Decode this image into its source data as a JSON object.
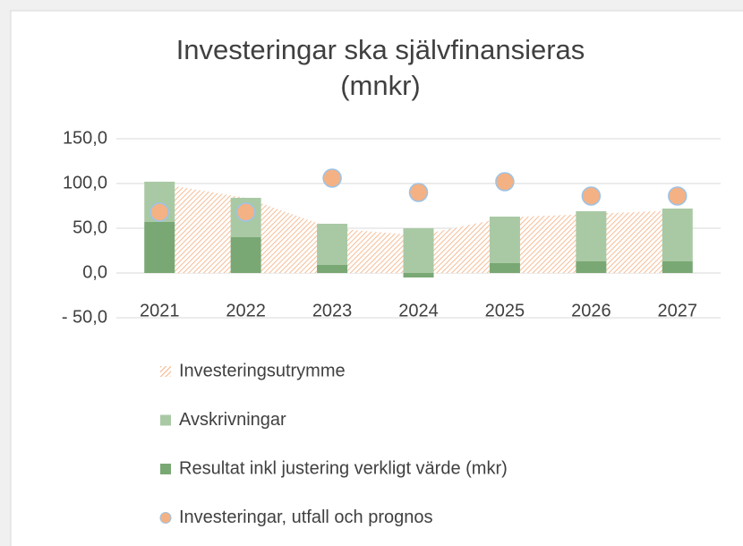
{
  "chart_data": {
    "type": "combo",
    "title": "Investeringar ska självfinansieras",
    "subtitle": "(mnkr)",
    "categories": [
      "2021",
      "2022",
      "2023",
      "2024",
      "2025",
      "2026",
      "2027"
    ],
    "series": [
      {
        "name": "Investeringsutrymme",
        "type": "area",
        "color": "#f4b183",
        "values": [
          100,
          84,
          50,
          42,
          62,
          66,
          70
        ]
      },
      {
        "name": "Avskrivningar",
        "type": "bar",
        "color": "#a9c9a4",
        "values": [
          45,
          44,
          46,
          50,
          52,
          56,
          59
        ]
      },
      {
        "name": "Resultat inkl justering verkligt värde (mkr)",
        "type": "bar",
        "color": "#7aa874",
        "values": [
          57,
          40,
          9,
          -5,
          11,
          13,
          13
        ]
      },
      {
        "name": "Investeringar, utfall och prognos",
        "type": "scatter",
        "color": "#f4b183",
        "values": [
          68,
          68,
          106,
          90,
          102,
          86,
          86
        ]
      }
    ],
    "ylim": [
      -50,
      150
    ],
    "yticks": [
      {
        "value": -50,
        "label": "- 50,0"
      },
      {
        "value": 0,
        "label": "0,0"
      },
      {
        "value": 50,
        "label": "50,0"
      },
      {
        "value": 100,
        "label": "100,0"
      },
      {
        "value": 150,
        "label": "150,0"
      }
    ],
    "grid": true,
    "legend": "bottom"
  }
}
